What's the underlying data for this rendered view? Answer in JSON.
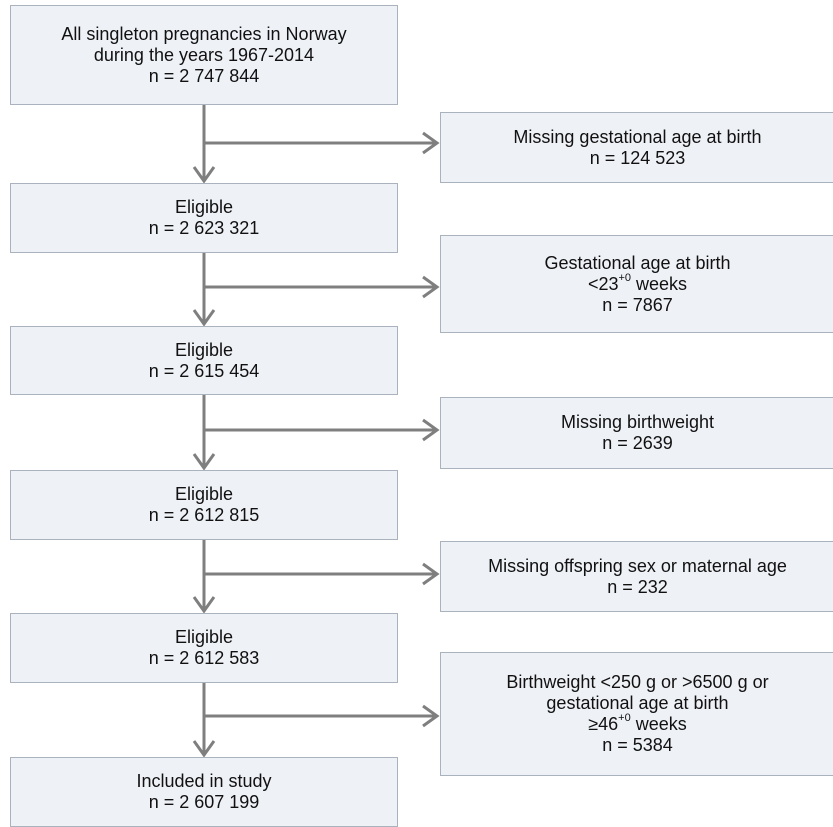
{
  "main": [
    {
      "lines": [
        "All singleton pregnancies in Norway",
        "during the years 1967-2014",
        "n = 2 747 844"
      ]
    },
    {
      "lines": [
        "Eligible",
        "n = 2 623 321"
      ]
    },
    {
      "lines": [
        "Eligible",
        "n = 2 615 454"
      ]
    },
    {
      "lines": [
        "Eligible",
        "n = 2 612 815"
      ]
    },
    {
      "lines": [
        "Eligible",
        "n = 2 612 583"
      ]
    },
    {
      "lines": [
        "Included in study",
        "n = 2 607 199"
      ]
    }
  ],
  "excluded": [
    {
      "lines": [
        "Missing gestational age at birth",
        "n = 124 523"
      ]
    },
    {
      "lines": [
        "Gestational age at birth",
        {
          "text": "<23",
          "sup": "+0",
          "tail": " weeks"
        },
        "n = 7867"
      ]
    },
    {
      "lines": [
        "Missing birthweight",
        "n = 2639"
      ]
    },
    {
      "lines": [
        "Missing offspring sex or maternal age",
        "n = 232"
      ]
    },
    {
      "lines": [
        "Birthweight <250 g or >6500 g or",
        "gestational age at birth",
        {
          "text": "≥46",
          "sup": "+0",
          "tail": " weeks"
        },
        "n = 5384"
      ]
    }
  ]
}
